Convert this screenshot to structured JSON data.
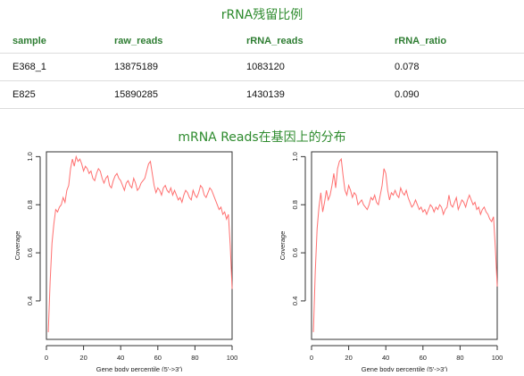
{
  "rrna_section": {
    "title": "rRNA残留比例",
    "columns": [
      "sample",
      "raw_reads",
      "rRNA_reads",
      "rRNA_ratio"
    ],
    "rows": [
      [
        "E368_1",
        "13875189",
        "1083120",
        "0.078"
      ],
      [
        "E825",
        "15890285",
        "1430139",
        "0.090"
      ]
    ]
  },
  "mrna_section": {
    "title": "mRNA Reads在基因上的分布"
  },
  "colors": {
    "accent": "#2e8b2e",
    "line": "#ff6f6f"
  },
  "chart_data": [
    {
      "type": "line",
      "title": "",
      "xlabel": "Gene body percentile (5'->3')",
      "ylabel": "Coverage",
      "xlim": [
        0,
        100
      ],
      "ylim": [
        0.24,
        1.02
      ],
      "xticks": [
        "0",
        "20",
        "40",
        "60",
        "80",
        "100"
      ],
      "yticks": [
        "0.4",
        "0.6",
        "0.8",
        "1.0"
      ],
      "series": [
        {
          "x": [
            1,
            2,
            3,
            4,
            5,
            6,
            7,
            8,
            9,
            10,
            11,
            12,
            13,
            14,
            15,
            16,
            17,
            18,
            19,
            20,
            21,
            22,
            23,
            24,
            25,
            26,
            27,
            28,
            29,
            30,
            31,
            32,
            33,
            34,
            35,
            36,
            37,
            38,
            39,
            40,
            41,
            42,
            43,
            44,
            45,
            46,
            47,
            48,
            49,
            50,
            51,
            52,
            53,
            54,
            55,
            56,
            57,
            58,
            59,
            60,
            61,
            62,
            63,
            64,
            65,
            66,
            67,
            68,
            69,
            70,
            71,
            72,
            73,
            74,
            75,
            76,
            77,
            78,
            79,
            80,
            81,
            82,
            83,
            84,
            85,
            86,
            87,
            88,
            89,
            90,
            91,
            92,
            93,
            94,
            95,
            96,
            97,
            98,
            99,
            100
          ],
          "values": [
            0.27,
            0.48,
            0.64,
            0.72,
            0.78,
            0.77,
            0.79,
            0.8,
            0.83,
            0.81,
            0.86,
            0.88,
            0.95,
            0.99,
            0.96,
            1.0,
            0.98,
            0.99,
            0.97,
            0.94,
            0.96,
            0.95,
            0.93,
            0.94,
            0.91,
            0.9,
            0.93,
            0.95,
            0.94,
            0.91,
            0.89,
            0.91,
            0.92,
            0.88,
            0.87,
            0.9,
            0.92,
            0.93,
            0.91,
            0.9,
            0.88,
            0.86,
            0.89,
            0.9,
            0.88,
            0.87,
            0.91,
            0.89,
            0.86,
            0.87,
            0.89,
            0.9,
            0.91,
            0.94,
            0.97,
            0.98,
            0.93,
            0.88,
            0.85,
            0.87,
            0.86,
            0.84,
            0.87,
            0.88,
            0.86,
            0.85,
            0.87,
            0.84,
            0.86,
            0.84,
            0.82,
            0.83,
            0.81,
            0.84,
            0.86,
            0.85,
            0.83,
            0.82,
            0.86,
            0.84,
            0.83,
            0.85,
            0.88,
            0.87,
            0.84,
            0.83,
            0.85,
            0.87,
            0.86,
            0.84,
            0.82,
            0.8,
            0.78,
            0.79,
            0.76,
            0.77,
            0.74,
            0.76,
            0.63,
            0.45
          ]
        }
      ]
    },
    {
      "type": "line",
      "title": "",
      "xlabel": "Gene body percentile (5'->3')",
      "ylabel": "Coverage",
      "xlim": [
        0,
        100
      ],
      "ylim": [
        0.24,
        1.02
      ],
      "xticks": [
        "0",
        "20",
        "40",
        "60",
        "80",
        "100"
      ],
      "yticks": [
        "0.4",
        "0.6",
        "0.8",
        "1.0"
      ],
      "series": [
        {
          "x": [
            1,
            2,
            3,
            4,
            5,
            6,
            7,
            8,
            9,
            10,
            11,
            12,
            13,
            14,
            15,
            16,
            17,
            18,
            19,
            20,
            21,
            22,
            23,
            24,
            25,
            26,
            27,
            28,
            29,
            30,
            31,
            32,
            33,
            34,
            35,
            36,
            37,
            38,
            39,
            40,
            41,
            42,
            43,
            44,
            45,
            46,
            47,
            48,
            49,
            50,
            51,
            52,
            53,
            54,
            55,
            56,
            57,
            58,
            59,
            60,
            61,
            62,
            63,
            64,
            65,
            66,
            67,
            68,
            69,
            70,
            71,
            72,
            73,
            74,
            75,
            76,
            77,
            78,
            79,
            80,
            81,
            82,
            83,
            84,
            85,
            86,
            87,
            88,
            89,
            90,
            91,
            92,
            93,
            94,
            95,
            96,
            97,
            98,
            99,
            100
          ],
          "values": [
            0.27,
            0.52,
            0.7,
            0.79,
            0.85,
            0.77,
            0.81,
            0.86,
            0.82,
            0.84,
            0.88,
            0.93,
            0.87,
            0.95,
            0.98,
            0.99,
            0.92,
            0.86,
            0.84,
            0.88,
            0.86,
            0.83,
            0.85,
            0.84,
            0.8,
            0.81,
            0.82,
            0.8,
            0.79,
            0.78,
            0.8,
            0.83,
            0.82,
            0.84,
            0.81,
            0.8,
            0.84,
            0.88,
            0.95,
            0.93,
            0.86,
            0.82,
            0.85,
            0.84,
            0.86,
            0.84,
            0.83,
            0.87,
            0.85,
            0.84,
            0.86,
            0.83,
            0.81,
            0.79,
            0.8,
            0.82,
            0.8,
            0.78,
            0.79,
            0.77,
            0.78,
            0.76,
            0.78,
            0.8,
            0.79,
            0.77,
            0.79,
            0.78,
            0.8,
            0.79,
            0.76,
            0.78,
            0.79,
            0.84,
            0.8,
            0.79,
            0.81,
            0.83,
            0.78,
            0.8,
            0.82,
            0.81,
            0.79,
            0.82,
            0.84,
            0.82,
            0.8,
            0.81,
            0.78,
            0.79,
            0.76,
            0.78,
            0.79,
            0.77,
            0.76,
            0.74,
            0.73,
            0.75,
            0.62,
            0.46
          ]
        }
      ]
    }
  ]
}
